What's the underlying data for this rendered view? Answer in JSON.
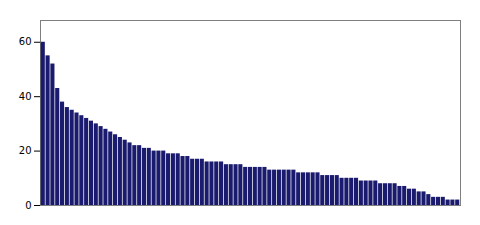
{
  "chart_data": {
    "type": "bar",
    "categories": [
      null,
      null,
      null,
      null,
      null,
      null,
      null,
      null,
      null,
      null,
      null,
      null,
      null,
      null,
      null,
      null,
      null,
      null,
      null,
      null,
      null,
      null,
      null,
      null,
      null,
      null,
      null,
      null,
      null,
      null,
      null,
      null,
      null,
      null,
      null,
      null,
      null,
      null,
      null,
      null,
      null,
      null,
      null,
      null,
      null,
      null,
      null,
      null,
      null,
      null,
      null,
      null,
      null,
      null,
      null,
      null,
      null,
      null,
      null,
      null,
      null,
      null,
      null,
      null,
      null,
      null,
      null,
      null,
      null,
      null,
      null,
      null,
      null,
      null,
      null,
      null,
      null,
      null,
      null,
      null,
      null,
      null,
      null,
      null,
      null,
      null,
      null
    ],
    "values": [
      60,
      55,
      52,
      43,
      38,
      36,
      35,
      34,
      33,
      32,
      31,
      30,
      29,
      28,
      27,
      26,
      25,
      24,
      23,
      22,
      22,
      21,
      21,
      20,
      20,
      20,
      19,
      19,
      19,
      18,
      18,
      17,
      17,
      17,
      16,
      16,
      16,
      16,
      15,
      15,
      15,
      15,
      14,
      14,
      14,
      14,
      14,
      13,
      13,
      13,
      13,
      13,
      13,
      12,
      12,
      12,
      12,
      12,
      11,
      11,
      11,
      11,
      10,
      10,
      10,
      10,
      9,
      9,
      9,
      9,
      8,
      8,
      8,
      8,
      7,
      7,
      6,
      6,
      5,
      5,
      4,
      3,
      3,
      3,
      2,
      2,
      2
    ],
    "color": "#1a1a6e",
    "ylim": [
      0,
      68
    ],
    "yticks": [
      0,
      20,
      40,
      60
    ],
    "grid": false,
    "tick_labels": "y"
  }
}
